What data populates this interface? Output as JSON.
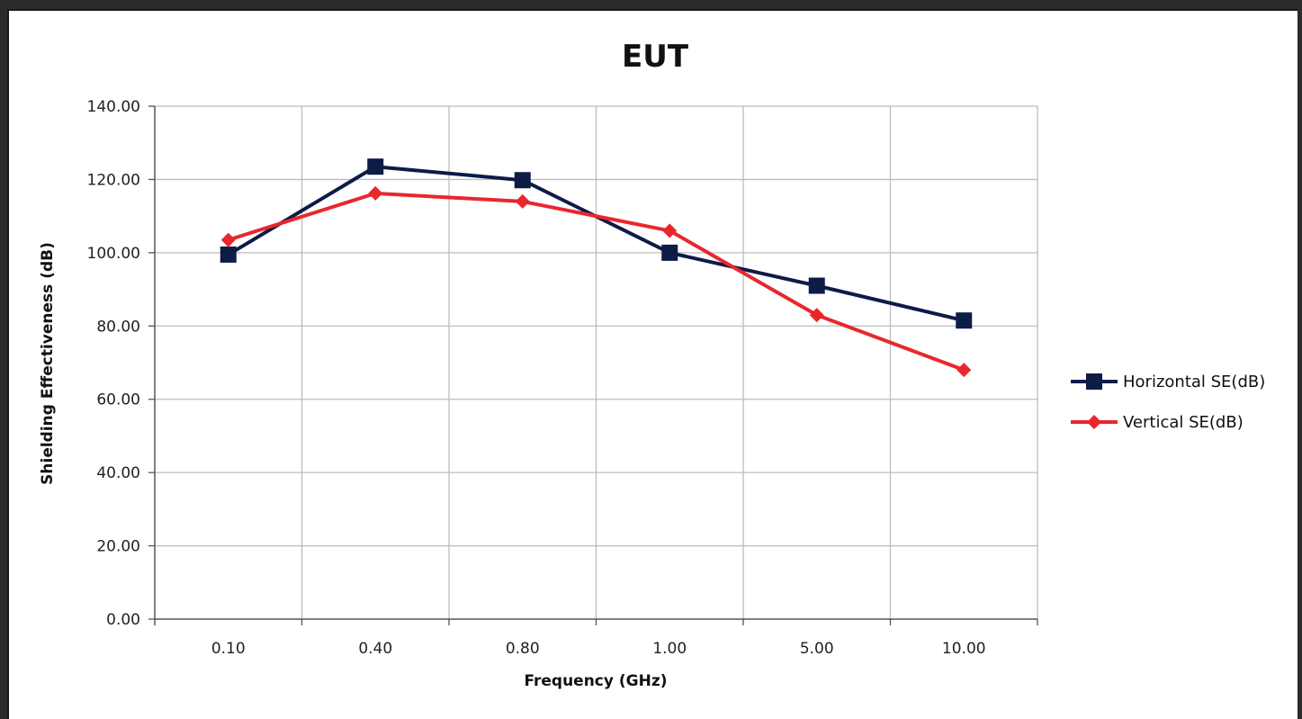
{
  "chart_data": {
    "type": "line",
    "title": "EUT",
    "xlabel": "Frequency (GHz)",
    "ylabel": "Shielding Effectiveness (dB)",
    "categories": [
      "0.10",
      "0.40",
      "0.80",
      "1.00",
      "5.00",
      "10.00"
    ],
    "ylim": [
      0,
      140
    ],
    "yticks": [
      "0.00",
      "20.00",
      "40.00",
      "60.00",
      "80.00",
      "100.00",
      "120.00",
      "140.00"
    ],
    "grid": true,
    "legend_position": "right",
    "series": [
      {
        "name": "Horizontal SE(dB)",
        "color": "#0d1b47",
        "marker": "square",
        "values": [
          99.5,
          123.5,
          119.8,
          100.0,
          91.0,
          81.5
        ]
      },
      {
        "name": "Vertical SE(dB)",
        "color": "#e8272d",
        "marker": "diamond",
        "values": [
          103.5,
          116.2,
          114.0,
          106.0,
          83.0,
          68.0
        ]
      }
    ]
  }
}
